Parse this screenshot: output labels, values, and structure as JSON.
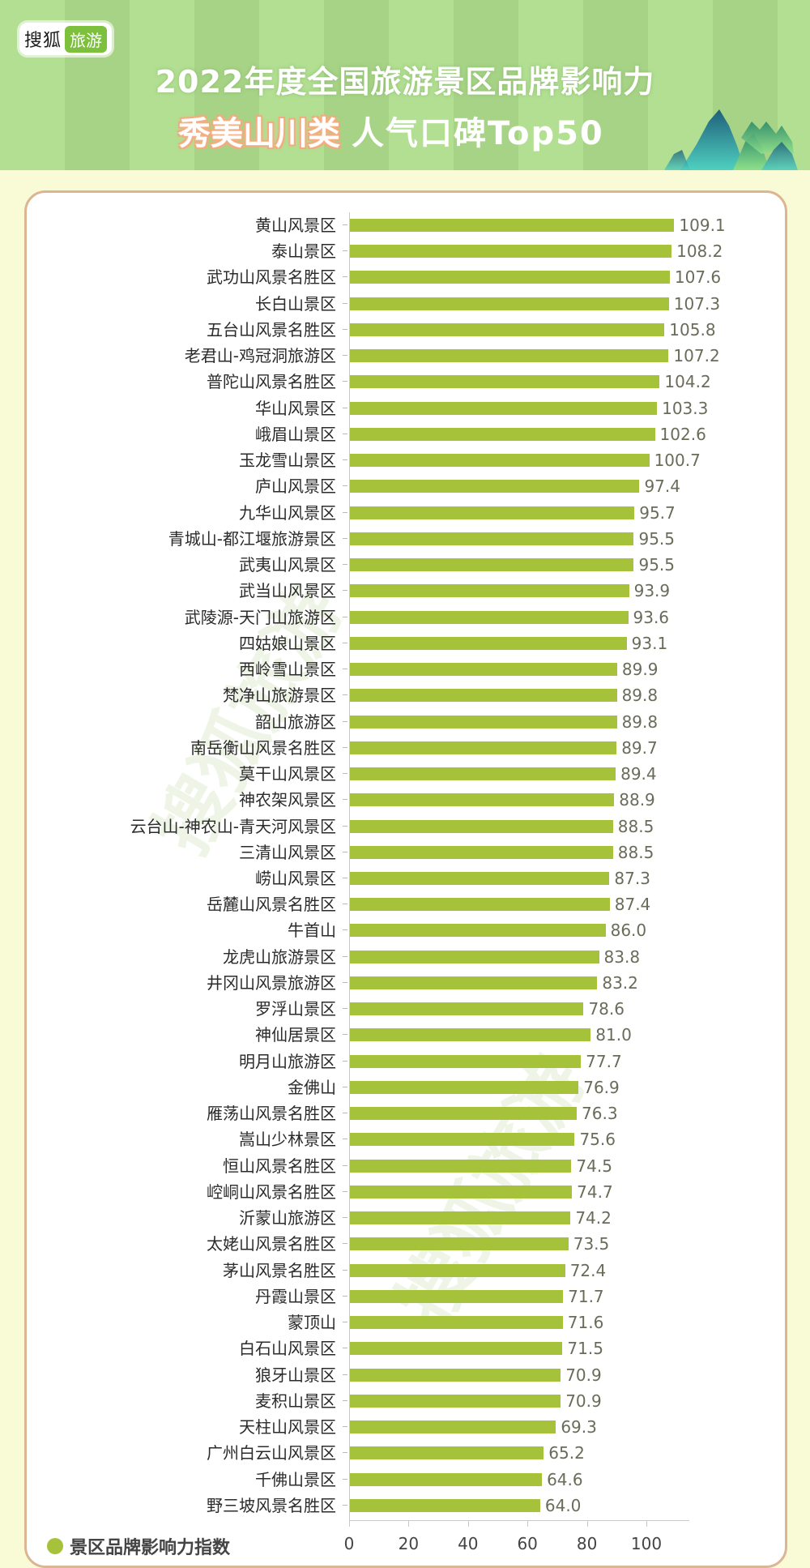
{
  "header": {
    "logo_brand": "搜狐",
    "logo_tag": "旅游",
    "title_line1": "2022年度全国旅游景区品牌影响力",
    "title_highlight": "秀美山川类",
    "title_rest": "人气口碑Top50"
  },
  "legend": {
    "label": "景区品牌影响力指数",
    "color": "#a6c23a"
  },
  "watermark": {
    "text1": "搜狐旅游",
    "text2": "搜狐旅游"
  },
  "colors": {
    "bar": "#a6c23a",
    "header_stripe_light": "#b2df92",
    "header_stripe_dark": "#a7d386",
    "page_bg": "#f8fbd6",
    "panel_border": "#dcb592"
  },
  "chart_data": {
    "type": "bar",
    "orientation": "horizontal",
    "title": "2022年度全国旅游景区品牌影响力 秀美山川类 人气口碑Top50",
    "xlabel": "",
    "ylabel": "",
    "xlim": [
      0,
      110
    ],
    "x_ticks": [
      0,
      20,
      40,
      60,
      80,
      100
    ],
    "grid": false,
    "legend_position": "bottom-left",
    "series": [
      {
        "name": "景区品牌影响力指数",
        "color": "#a6c23a"
      }
    ],
    "categories": [
      "黄山风景区",
      "泰山景区",
      "武功山风景名胜区",
      "长白山景区",
      "五台山风景名胜区",
      "老君山-鸡冠洞旅游区",
      "普陀山风景名胜区",
      "华山风景区",
      "峨眉山景区",
      "玉龙雪山景区",
      "庐山风景区",
      "九华山风景区",
      "青城山-都江堰旅游景区",
      "武夷山风景区",
      "武当山风景区",
      "武陵源-天门山旅游区",
      "四姑娘山景区",
      "西岭雪山景区",
      "梵净山旅游景区",
      "韶山旅游区",
      "南岳衡山风景名胜区",
      "莫干山风景区",
      "神农架风景区",
      "云台山-神农山-青天河风景区",
      "三清山风景区",
      "崂山风景区",
      "岳麓山风景名胜区",
      "牛首山",
      "龙虎山旅游景区",
      "井冈山风景旅游区",
      "罗浮山景区",
      "神仙居景区",
      "明月山旅游区",
      "金佛山",
      "雁荡山风景名胜区",
      "嵩山少林景区",
      "恒山风景名胜区",
      "崆峒山风景名胜区",
      "沂蒙山旅游区",
      "太姥山风景名胜区",
      "茅山风景名胜区",
      "丹霞山景区",
      "蒙顶山",
      "白石山风景区",
      "狼牙山景区",
      "麦积山景区",
      "天柱山风景区",
      "广州白云山风景区",
      "千佛山景区",
      "野三坡风景名胜区"
    ],
    "values": [
      109.1,
      108.2,
      107.6,
      107.3,
      105.8,
      107.2,
      104.2,
      103.3,
      102.6,
      100.7,
      97.4,
      95.7,
      95.5,
      95.5,
      93.9,
      93.6,
      93.1,
      89.9,
      89.8,
      89.8,
      89.7,
      89.4,
      88.9,
      88.5,
      88.5,
      87.3,
      87.4,
      86.0,
      83.8,
      83.2,
      78.6,
      81.0,
      77.7,
      76.9,
      76.3,
      75.6,
      74.5,
      74.7,
      74.2,
      73.5,
      72.4,
      71.7,
      71.6,
      71.5,
      70.9,
      70.9,
      69.3,
      65.2,
      64.6,
      64.0
    ],
    "value_labels": [
      "109.1",
      "108.2",
      "107.6",
      "107.3",
      "105.8",
      "107.2",
      "104.2",
      "103.3",
      "102.6",
      "100.7",
      "97.4",
      "95.7",
      "95.5",
      "95.5",
      "93.9",
      "93.6",
      "93.1",
      "89.9",
      "89.8",
      "89.8",
      "89.7",
      "89.4",
      "88.9",
      "88.5",
      "88.5",
      "87.3",
      "87.4",
      "86.0",
      "83.8",
      "83.2",
      "78.6",
      "81.0",
      "77.7",
      "76.9",
      "76.3",
      "75.6",
      "74.5",
      "74.7",
      "74.2",
      "73.5",
      "72.4",
      "71.7",
      "71.6",
      "71.5",
      "70.9",
      "70.9",
      "69.3",
      "65.2",
      "64.6",
      "64.0"
    ]
  }
}
